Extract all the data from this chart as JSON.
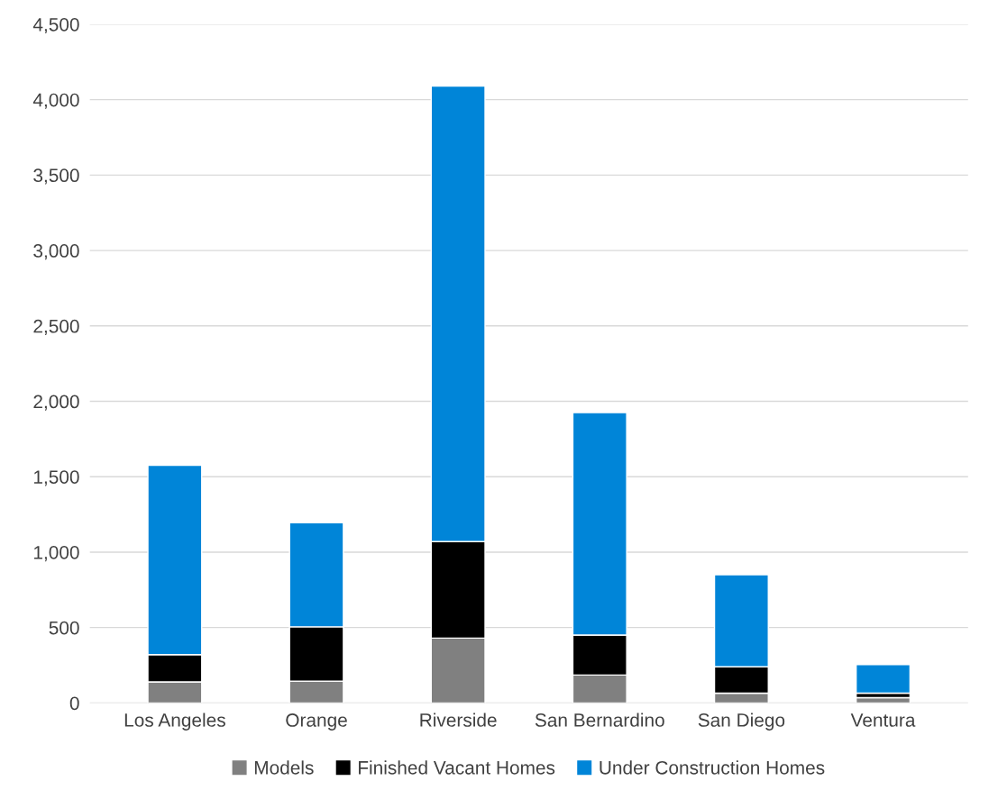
{
  "chart_data": {
    "type": "bar",
    "stacked": true,
    "categories": [
      "Los Angeles",
      "Orange",
      "Riverside",
      "San Bernardino",
      "San Diego",
      "Ventura"
    ],
    "series": [
      {
        "name": "Models",
        "color": "#808080",
        "values": [
          140,
          145,
          430,
          185,
          65,
          35
        ]
      },
      {
        "name": "Finished Vacant Homes",
        "color": "#000000",
        "values": [
          180,
          360,
          640,
          265,
          175,
          30
        ]
      },
      {
        "name": "Under Construction Homes",
        "color": "#0085d8",
        "values": [
          1255,
          690,
          3020,
          1475,
          610,
          190
        ]
      }
    ],
    "ylim": [
      0,
      4500
    ],
    "yticks": [
      {
        "value": 0,
        "label": "0"
      },
      {
        "value": 500,
        "label": "500"
      },
      {
        "value": 1000,
        "label": "1,000"
      },
      {
        "value": 1500,
        "label": "1,500"
      },
      {
        "value": 2000,
        "label": "2,000"
      },
      {
        "value": 2500,
        "label": "2,500"
      },
      {
        "value": 3000,
        "label": "3,000"
      },
      {
        "value": 3500,
        "label": "3,500"
      },
      {
        "value": 4000,
        "label": "4,000"
      },
      {
        "value": 4500,
        "label": "4,500"
      }
    ],
    "grid": "y",
    "legend": "bottom"
  }
}
